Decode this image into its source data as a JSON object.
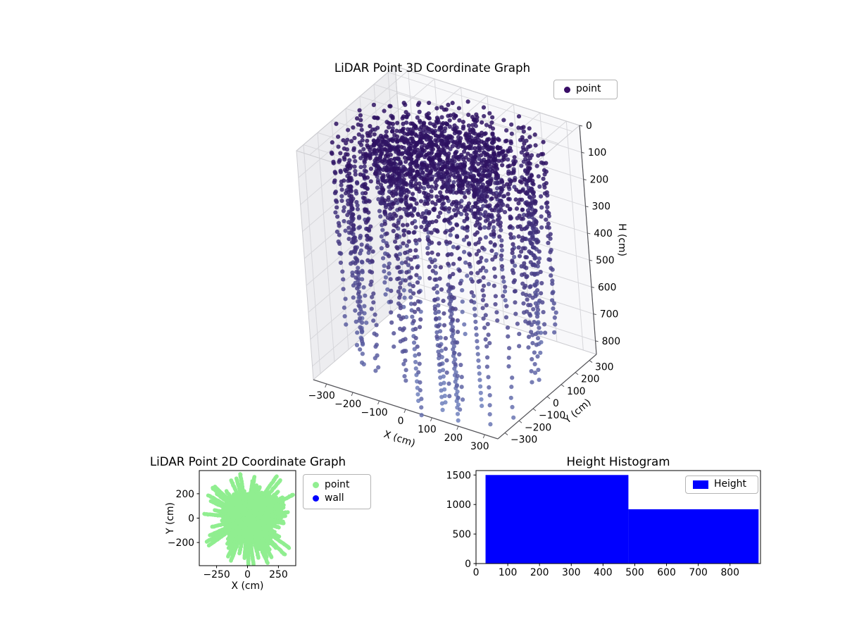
{
  "figure": {
    "background": "#ffffff"
  },
  "chart_data": [
    {
      "id": "lidar-3d",
      "type": "scatter3d",
      "title": "LiDAR Point 3D Coordinate Graph",
      "xlabel": "X (cm)",
      "ylabel": "Y (cm)",
      "zlabel": "H (cm)",
      "x_range": [
        -350,
        350
      ],
      "y_range": [
        -350,
        350
      ],
      "h_range": [
        0,
        850
      ],
      "h_axis_inverted": true,
      "x_ticks": [
        {
          "v": -300,
          "label": "−300"
        },
        {
          "v": -200,
          "label": "−200"
        },
        {
          "v": -100,
          "label": "−100"
        },
        {
          "v": 0,
          "label": "0"
        },
        {
          "v": 100,
          "label": "100"
        },
        {
          "v": 200,
          "label": "200"
        },
        {
          "v": 300,
          "label": "300"
        }
      ],
      "y_ticks": [
        {
          "v": -300,
          "label": "−300"
        },
        {
          "v": -200,
          "label": "−200"
        },
        {
          "v": -100,
          "label": "−100"
        },
        {
          "v": 0,
          "label": "0"
        },
        {
          "v": 100,
          "label": "100"
        },
        {
          "v": 200,
          "label": "200"
        },
        {
          "v": 300,
          "label": "300"
        }
      ],
      "h_ticks": [
        {
          "v": 0,
          "label": "0"
        },
        {
          "v": 100,
          "label": "100"
        },
        {
          "v": 200,
          "label": "200"
        },
        {
          "v": 300,
          "label": "300"
        },
        {
          "v": 400,
          "label": "400"
        },
        {
          "v": 500,
          "label": "500"
        },
        {
          "v": 600,
          "label": "600"
        },
        {
          "v": 700,
          "label": "700"
        },
        {
          "v": 800,
          "label": "800"
        }
      ],
      "pane_colors": {
        "left": "#ededf0",
        "right": "#f8f8fa",
        "top": "#f2f2f4"
      },
      "grid_color": "#d7d7db",
      "edge_color": "#cdcdd1",
      "spine_color": "#55555a",
      "legend": {
        "position": "upper right",
        "items": [
          {
            "label": "point",
            "color": "#380d66",
            "marker": "dot"
          }
        ]
      },
      "point_cloud": {
        "description": "cylindrical room scan: dense dark ceiling cap near H=0, dotted wall columns radius 295-365 cm descending to ~900 cm, sparse deep floor spikes past axis limit",
        "seed": 7,
        "ceiling_points": 900,
        "ceiling_radius": 255,
        "ceiling_thickness": 115,
        "rings": [
          {
            "r": 140,
            "h": 150,
            "dh": 110,
            "n": 130
          },
          {
            "r": 205,
            "h": 160,
            "dh": 120,
            "n": 150
          }
        ],
        "columns": 90,
        "wall_radius_min": 295,
        "wall_radius_max": 365,
        "depth_min": 260,
        "depth_max": 920,
        "step_min": 30,
        "step_max": 46,
        "spike_columns": 6,
        "spike_depth": 1030,
        "spike_step": 24,
        "color_low": "#2c0e5e",
        "color_high": "#7081bd",
        "color_h_max": 1000,
        "alpha": 0.85,
        "point_radius": 3.1
      }
    },
    {
      "id": "lidar-2d",
      "type": "scatter",
      "title": "LiDAR Point 2D Coordinate Graph",
      "xlabel": "X (cm)",
      "ylabel": "Y (cm)",
      "x_range": [
        -390,
        390
      ],
      "y_range": [
        -390,
        390
      ],
      "x_ticks": [
        {
          "v": -250,
          "label": "−250"
        },
        {
          "v": 0,
          "label": "0"
        },
        {
          "v": 250,
          "label": "250"
        }
      ],
      "y_ticks": [
        {
          "v": -200,
          "label": "−200"
        },
        {
          "v": 0,
          "label": "0"
        },
        {
          "v": 200,
          "label": "200"
        }
      ],
      "legend": {
        "position": "outside upper right",
        "items": [
          {
            "label": "point",
            "color": "#90ee90",
            "marker": "dot"
          },
          {
            "label": "wall",
            "color": "#0000ff",
            "marker": "dot"
          }
        ]
      },
      "point_cloud": {
        "description": "solid light-green radial blob with ray spikes from sensor origin, clipped by axes",
        "seed": 11,
        "rays": 130,
        "base_radius": 150,
        "spike_extra": 300,
        "spike_pow": 1.4,
        "step": 8,
        "core_points": 650,
        "core_radius": 200,
        "color": "#90ee90",
        "point_radius": 2.8
      }
    },
    {
      "id": "height-histogram",
      "type": "histogram",
      "title": "Height Histogram",
      "bin_edges": [
        30,
        480,
        890
      ],
      "counts": [
        1500,
        920
      ],
      "x_range": [
        0,
        896
      ],
      "y_range": [
        0,
        1575
      ],
      "x_ticks": [
        {
          "v": 0,
          "label": "0"
        },
        {
          "v": 100,
          "label": "100"
        },
        {
          "v": 200,
          "label": "200"
        },
        {
          "v": 300,
          "label": "300"
        },
        {
          "v": 400,
          "label": "400"
        },
        {
          "v": 500,
          "label": "500"
        },
        {
          "v": 600,
          "label": "600"
        },
        {
          "v": 700,
          "label": "700"
        },
        {
          "v": 800,
          "label": "800"
        }
      ],
      "y_ticks": [
        {
          "v": 0,
          "label": "0"
        },
        {
          "v": 500,
          "label": "500"
        },
        {
          "v": 1000,
          "label": "1000"
        },
        {
          "v": 1500,
          "label": "1500"
        }
      ],
      "bar_color": "#0000ff",
      "legend": {
        "position": "upper right",
        "items": [
          {
            "label": "Height",
            "color": "#0000ff",
            "marker": "patch"
          }
        ]
      }
    }
  ]
}
